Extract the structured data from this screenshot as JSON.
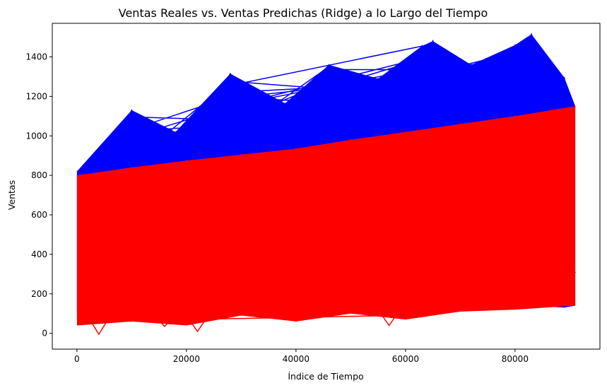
{
  "chart_data": {
    "type": "line",
    "title": "Ventas Reales vs. Ventas Predichas (Ridge) a lo Largo del Tiempo",
    "xlabel": "Índice de Tiempo",
    "ylabel": "Ventas",
    "xlim": [
      -4500,
      95500
    ],
    "ylim": [
      -80,
      1570
    ],
    "xticks": [
      0,
      20000,
      40000,
      60000,
      80000
    ],
    "xtick_labels": [
      "0",
      "20000",
      "40000",
      "60000",
      "80000"
    ],
    "yticks": [
      0,
      200,
      400,
      600,
      800,
      1000,
      1200,
      1400
    ],
    "ytick_labels": [
      "0",
      "200",
      "400",
      "600",
      "800",
      "1000",
      "1200",
      "1400"
    ],
    "grid": false,
    "legend": "none",
    "series": [
      {
        "color": "#0000ff",
        "x": [
          0,
          10000,
          18000,
          28000,
          38000,
          46000,
          55000,
          63000,
          65000,
          72000,
          80000,
          83000,
          89000,
          91000
        ],
        "upper": [
          820,
          1130,
          1020,
          1315,
          1165,
          1360,
          1290,
          1455,
          1480,
          1360,
          1460,
          1515,
          1295,
          1150
        ],
        "lower": [
          110,
          100,
          120,
          130,
          120,
          140,
          150,
          160,
          155,
          160,
          150,
          140,
          130,
          140
        ]
      },
      {
        "color": "#ff0000",
        "x": [
          0,
          10000,
          20000,
          30000,
          40000,
          50000,
          60000,
          70000,
          80000,
          91000
        ],
        "upper": [
          800,
          840,
          875,
          905,
          935,
          980,
          1020,
          1060,
          1100,
          1150
        ],
        "lower": [
          40,
          60,
          40,
          90,
          60,
          100,
          70,
          110,
          120,
          140
        ],
        "outliers": [
          {
            "x": 4000,
            "y": -5
          },
          {
            "x": 22000,
            "y": 10
          },
          {
            "x": 57000,
            "y": 40
          },
          {
            "x": 16000,
            "y": 35
          }
        ]
      }
    ]
  }
}
